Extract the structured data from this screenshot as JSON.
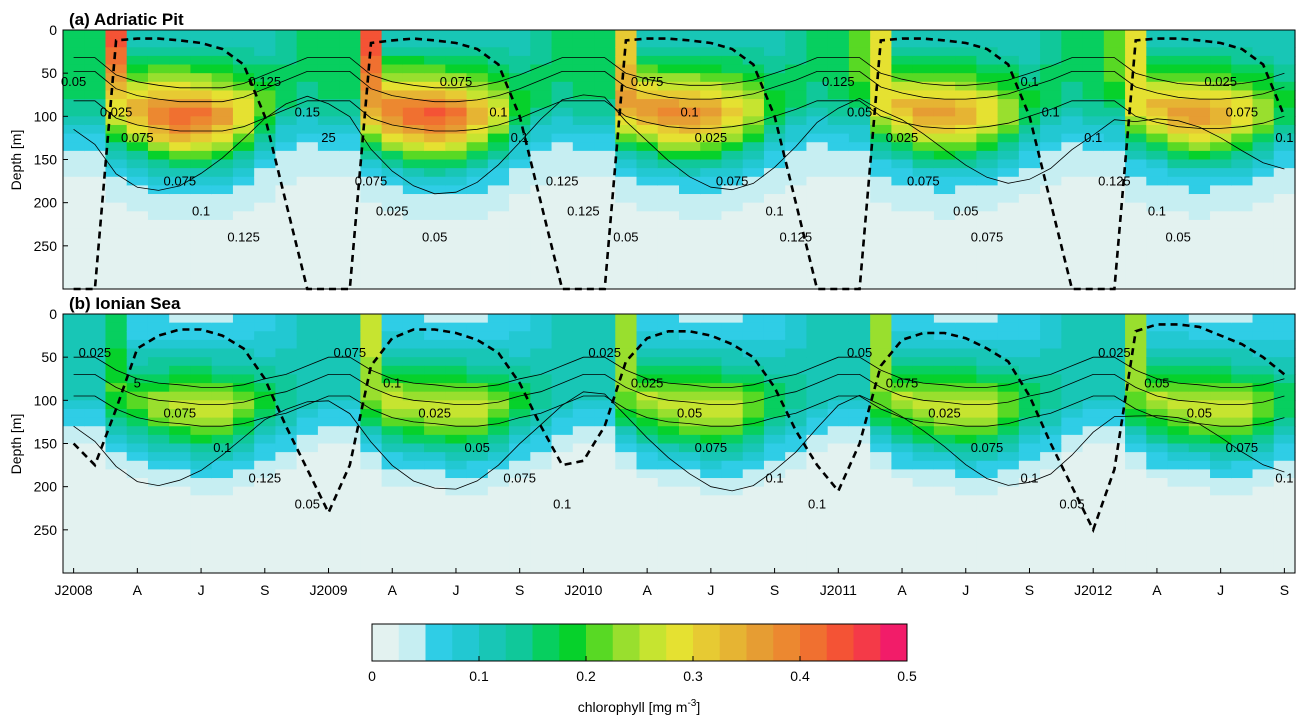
{
  "chart_data": [
    {
      "type": "heatmap",
      "title": "(a) Adriatic Pit",
      "ylabel": "Depth [m]",
      "yticks": [
        0,
        50,
        100,
        150,
        200,
        250
      ],
      "ylim": [
        300,
        0
      ],
      "x": [
        "2008-01",
        "2008-02",
        "2008-03",
        "2008-04",
        "2008-05",
        "2008-06",
        "2008-07",
        "2008-08",
        "2008-09",
        "2008-10",
        "2008-11",
        "2008-12",
        "2009-01",
        "2009-02",
        "2009-03",
        "2009-04",
        "2009-05",
        "2009-06",
        "2009-07",
        "2009-08",
        "2009-09",
        "2009-10",
        "2009-11",
        "2009-12",
        "2010-01",
        "2010-02",
        "2010-03",
        "2010-04",
        "2010-05",
        "2010-06",
        "2010-07",
        "2010-08",
        "2010-09",
        "2010-10",
        "2010-11",
        "2010-12",
        "2011-01",
        "2011-02",
        "2011-03",
        "2011-04",
        "2011-05",
        "2011-06",
        "2011-07",
        "2011-08",
        "2011-09",
        "2011-10",
        "2011-11",
        "2011-12",
        "2012-01",
        "2012-02",
        "2012-03",
        "2012-04",
        "2012-05",
        "2012-06",
        "2012-07",
        "2012-08",
        "2012-09",
        "2012-10"
      ],
      "depths": [
        0,
        10,
        20,
        30,
        40,
        50,
        60,
        70,
        80,
        90,
        100,
        110,
        120,
        130,
        140,
        150,
        160,
        170,
        180,
        190,
        200,
        210,
        220,
        230,
        240,
        250,
        260,
        270,
        280,
        290,
        300
      ],
      "profile": {
        "surface": [
          0.17,
          0.17,
          0.45,
          0.1,
          0.1,
          0.1,
          0.1,
          0.1,
          0.1,
          0.1,
          0.14,
          0.17,
          0.17,
          0.17,
          0.44,
          0.1,
          0.1,
          0.1,
          0.1,
          0.1,
          0.1,
          0.1,
          0.14,
          0.17,
          0.17,
          0.17,
          0.3,
          0.1,
          0.1,
          0.1,
          0.1,
          0.1,
          0.1,
          0.1,
          0.14,
          0.17,
          0.17,
          0.2,
          0.28,
          0.1,
          0.1,
          0.1,
          0.1,
          0.1,
          0.1,
          0.1,
          0.14,
          0.17,
          0.17,
          0.2,
          0.28,
          0.1,
          0.1,
          0.1,
          0.1,
          0.1,
          0.1,
          0.1
        ],
        "peak_value": [
          0.17,
          0.17,
          0.3,
          0.34,
          0.4,
          0.42,
          0.4,
          0.36,
          0.3,
          0.22,
          0.16,
          0.15,
          0.17,
          0.17,
          0.36,
          0.4,
          0.42,
          0.43,
          0.4,
          0.34,
          0.28,
          0.2,
          0.16,
          0.15,
          0.17,
          0.17,
          0.36,
          0.37,
          0.38,
          0.38,
          0.36,
          0.31,
          0.26,
          0.19,
          0.16,
          0.15,
          0.17,
          0.2,
          0.3,
          0.33,
          0.36,
          0.36,
          0.34,
          0.3,
          0.25,
          0.18,
          0.16,
          0.15,
          0.17,
          0.2,
          0.3,
          0.33,
          0.36,
          0.37,
          0.35,
          0.3,
          0.25,
          0.18
        ],
        "peak_depth": [
          60,
          60,
          80,
          88,
          92,
          95,
          95,
          95,
          90,
          80,
          70,
          60,
          60,
          60,
          80,
          88,
          92,
          95,
          95,
          93,
          88,
          80,
          70,
          60,
          60,
          60,
          78,
          85,
          90,
          92,
          92,
          90,
          86,
          78,
          70,
          60,
          60,
          60,
          78,
          85,
          90,
          92,
          92,
          90,
          86,
          78,
          70,
          60,
          60,
          60,
          78,
          85,
          90,
          92,
          92,
          90,
          86,
          78
        ]
      },
      "contour_labels": [
        "0.05",
        "0.025",
        "0.075",
        "0.075",
        "0.1",
        "0.125",
        "0.125",
        "0.15",
        "25",
        "0.075",
        "0.025",
        "0.05",
        "0.075",
        "0.1",
        "0.1",
        "0.125",
        "0.125",
        "0.05",
        "0.075",
        "0.1",
        "0.025",
        "0.075",
        "0.1",
        "0.125",
        "0.125",
        "0.05",
        "0.025",
        "0.075",
        "0.05",
        "0.075",
        "0.1",
        "0.1",
        "0.1",
        "0.125",
        "0.1",
        "0.05",
        "0.025",
        "0.075",
        "0.1"
      ],
      "mixed_layer_depth": [
        300,
        300,
        12,
        10,
        10,
        12,
        15,
        22,
        40,
        100,
        200,
        300,
        300,
        300,
        15,
        12,
        10,
        12,
        15,
        22,
        40,
        100,
        200,
        300,
        300,
        300,
        12,
        10,
        10,
        12,
        15,
        22,
        40,
        100,
        200,
        300,
        300,
        300,
        12,
        10,
        10,
        12,
        15,
        22,
        40,
        100,
        200,
        300,
        300,
        300,
        12,
        10,
        10,
        12,
        15,
        22,
        40,
        100
      ]
    },
    {
      "type": "heatmap",
      "title": "(b) Ionian Sea",
      "ylabel": "Depth [m]",
      "yticks": [
        0,
        50,
        100,
        150,
        200,
        250
      ],
      "ylim": [
        300,
        0
      ],
      "xticklabels": [
        "J2008",
        "A",
        "J",
        "S",
        "J2009",
        "A",
        "J",
        "S",
        "J2010",
        "A",
        "J",
        "S",
        "J2011",
        "A",
        "J",
        "S",
        "J2012",
        "A",
        "J",
        "S"
      ],
      "profile": {
        "surface": [
          0.12,
          0.12,
          0.16,
          0.05,
          0.05,
          0.04,
          0.04,
          0.04,
          0.05,
          0.06,
          0.08,
          0.1,
          0.12,
          0.12,
          0.26,
          0.05,
          0.05,
          0.04,
          0.04,
          0.04,
          0.05,
          0.06,
          0.08,
          0.1,
          0.12,
          0.12,
          0.24,
          0.05,
          0.05,
          0.04,
          0.04,
          0.04,
          0.05,
          0.06,
          0.08,
          0.1,
          0.12,
          0.12,
          0.24,
          0.05,
          0.05,
          0.04,
          0.04,
          0.04,
          0.05,
          0.06,
          0.08,
          0.1,
          0.12,
          0.12,
          0.24,
          0.05,
          0.05,
          0.04,
          0.04,
          0.04,
          0.05,
          0.06
        ],
        "peak_value": [
          0.12,
          0.12,
          0.2,
          0.22,
          0.24,
          0.26,
          0.27,
          0.26,
          0.23,
          0.18,
          0.14,
          0.12,
          0.12,
          0.12,
          0.24,
          0.26,
          0.26,
          0.27,
          0.27,
          0.26,
          0.23,
          0.18,
          0.14,
          0.12,
          0.12,
          0.12,
          0.23,
          0.25,
          0.26,
          0.27,
          0.27,
          0.26,
          0.22,
          0.17,
          0.14,
          0.12,
          0.12,
          0.12,
          0.23,
          0.25,
          0.26,
          0.27,
          0.27,
          0.26,
          0.22,
          0.17,
          0.14,
          0.12,
          0.12,
          0.12,
          0.23,
          0.25,
          0.26,
          0.27,
          0.27,
          0.26,
          0.22,
          0.17
        ],
        "peak_depth": [
          70,
          70,
          85,
          95,
          100,
          102,
          105,
          105,
          102,
          95,
          90,
          80,
          70,
          70,
          85,
          95,
          100,
          102,
          105,
          105,
          102,
          95,
          90,
          80,
          70,
          70,
          85,
          95,
          100,
          102,
          105,
          105,
          102,
          95,
          90,
          80,
          70,
          70,
          85,
          95,
          100,
          102,
          105,
          105,
          102,
          95,
          90,
          80,
          70,
          70,
          85,
          95,
          100,
          102,
          105,
          105,
          102,
          95
        ]
      },
      "contour_labels": [
        "0.025",
        "5",
        "0.075",
        "0.1",
        "0.125",
        "0.05",
        "0.075",
        "0.1",
        "0.025",
        "0.05",
        "0.075",
        "0.1",
        "0.025",
        "0.025",
        "0.05",
        "0.075",
        "0.1",
        "0.1",
        "0.05",
        "0.075",
        "0.025",
        "0.075",
        "0.1",
        "0.05",
        "0.025",
        "0.05",
        "0.05",
        "0.075",
        "0.1"
      ],
      "mixed_layer_depth": [
        150,
        175,
        110,
        40,
        25,
        18,
        18,
        25,
        40,
        75,
        130,
        180,
        230,
        175,
        60,
        28,
        18,
        18,
        22,
        30,
        45,
        80,
        130,
        175,
        170,
        130,
        55,
        28,
        20,
        20,
        25,
        35,
        50,
        85,
        135,
        175,
        205,
        150,
        60,
        30,
        22,
        22,
        28,
        40,
        55,
        95,
        150,
        200,
        250,
        180,
        20,
        12,
        12,
        15,
        25,
        35,
        50,
        70
      ]
    }
  ],
  "colorbar": {
    "label": "chlorophyll [mg m",
    "label_exp": "-3",
    "label_close": "]",
    "min": 0,
    "max": 0.5,
    "step": 0.025,
    "tick_values": [
      0,
      0.1,
      0.2,
      0.3,
      0.4,
      0.5
    ],
    "tick_labels": [
      "0",
      "0.1",
      "0.2",
      "0.3",
      "0.4",
      "0.5"
    ],
    "colors": [
      "#e3f2f0",
      "#c6eef2",
      "#2fcde6",
      "#22c8d2",
      "#18c6b6",
      "#10c89a",
      "#07cf5f",
      "#06d12b",
      "#58d924",
      "#99df2e",
      "#c6e430",
      "#e5e131",
      "#e7ca33",
      "#e6b433",
      "#e69d33",
      "#ec8830",
      "#f07030",
      "#f45335",
      "#f43a48",
      "#f21c69"
    ]
  },
  "styles": {
    "contour_color": "#000000",
    "mld_color": "#000000"
  }
}
